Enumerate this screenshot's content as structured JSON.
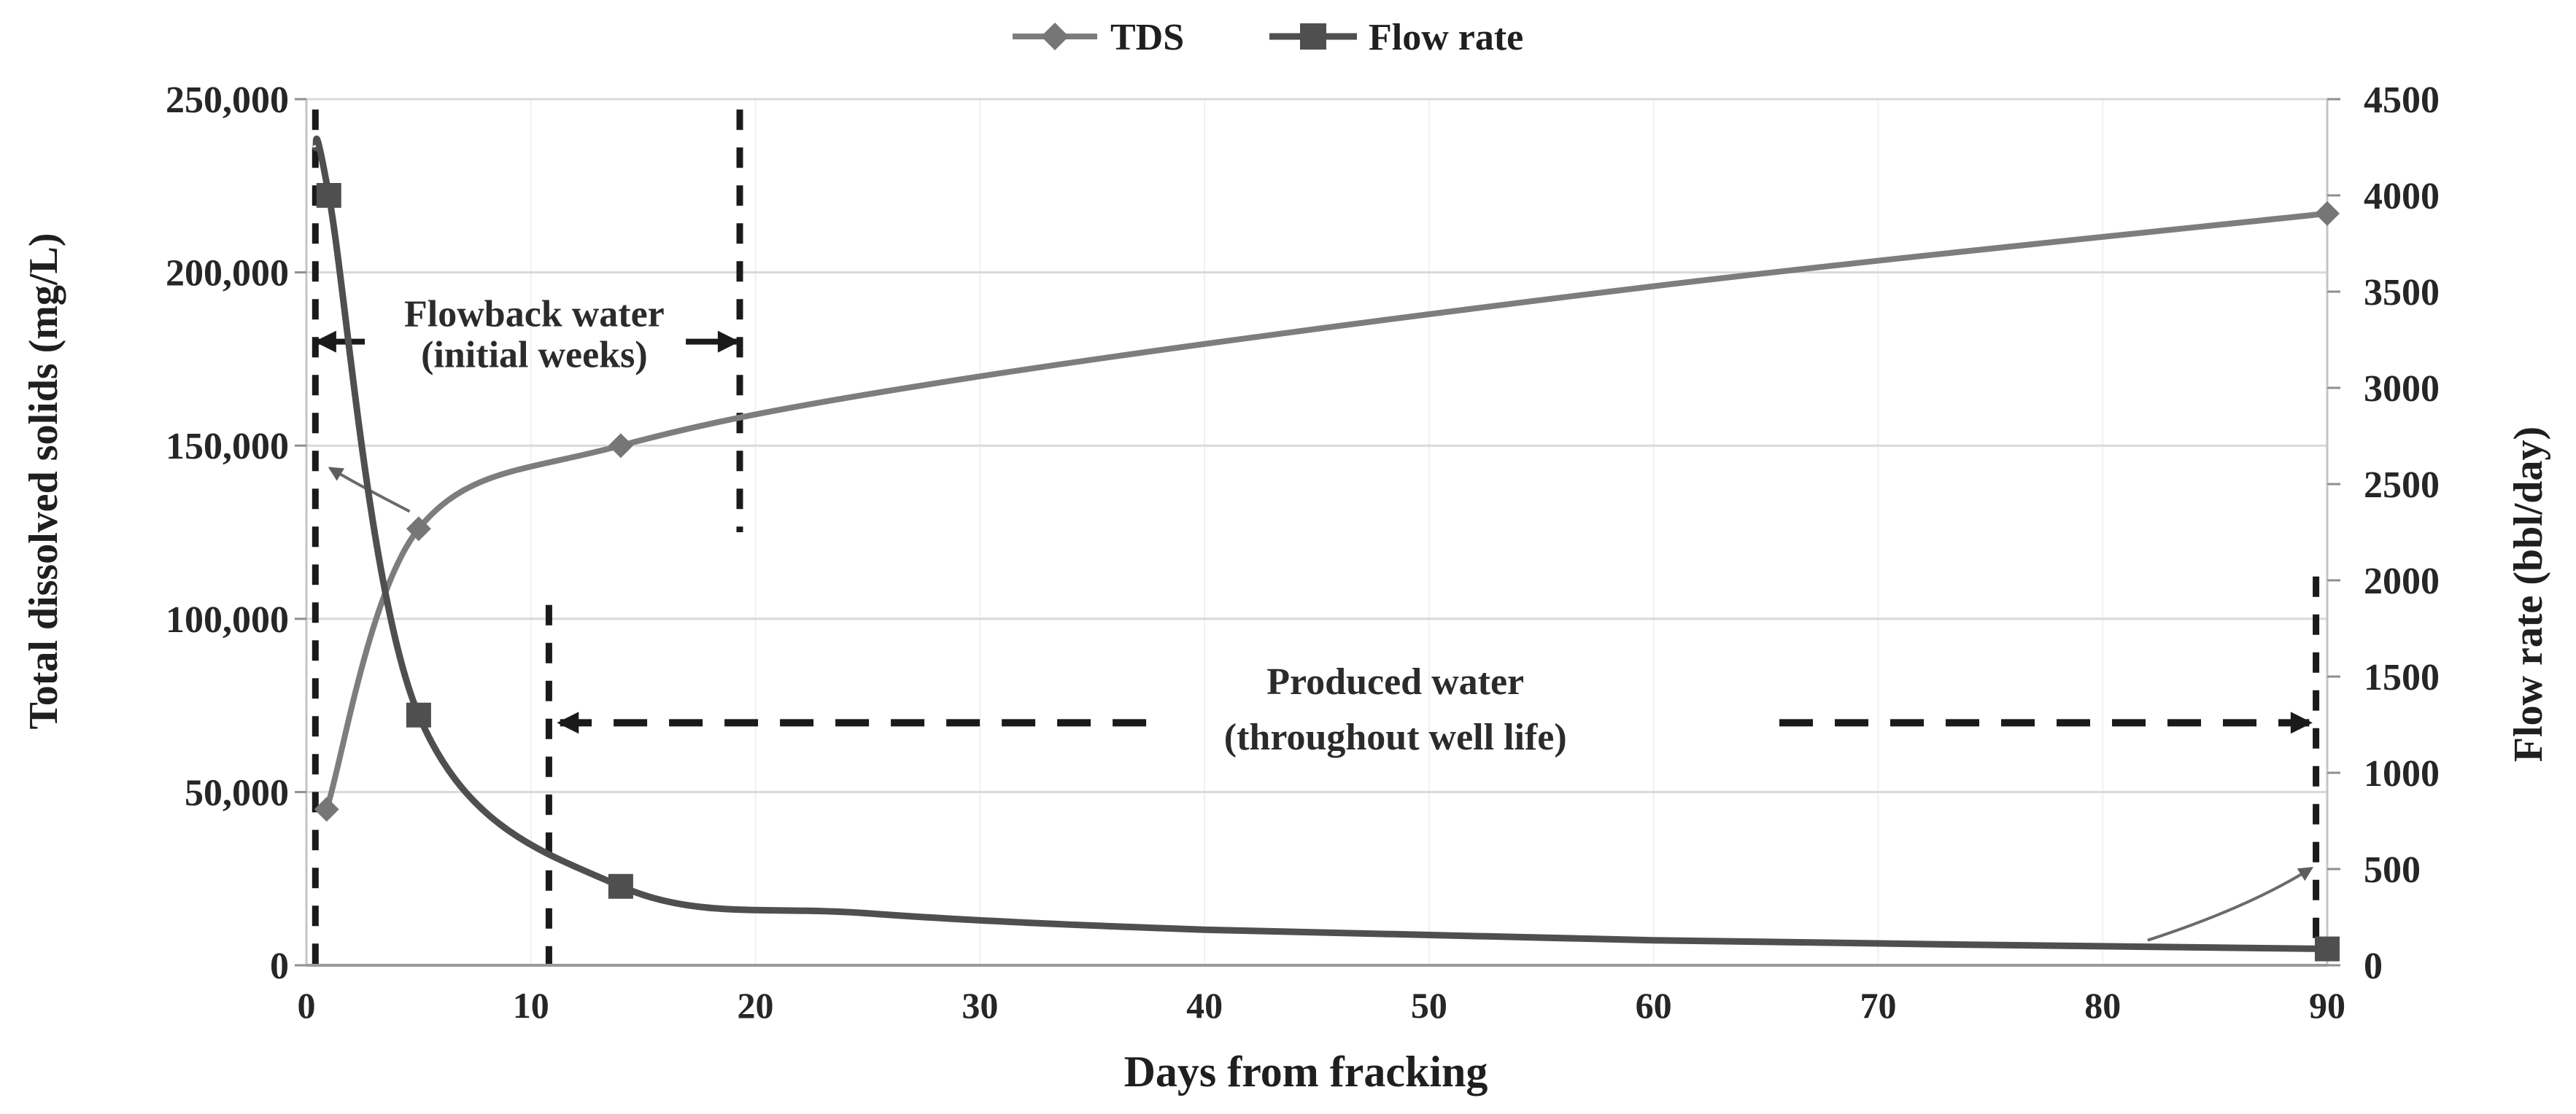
{
  "chart_data": {
    "type": "line",
    "title": "",
    "xlabel": "Days from fracking",
    "ylabel_left": "Total dissolved solids (mg/L)",
    "ylabel_right": "Flow rate (bbl/day)",
    "x_range": [
      0,
      90
    ],
    "x_ticks": [
      {
        "v": 0,
        "t": "0"
      },
      {
        "v": 10,
        "t": "10"
      },
      {
        "v": 20,
        "t": "20"
      },
      {
        "v": 30,
        "t": "30"
      },
      {
        "v": 40,
        "t": "40"
      },
      {
        "v": 50,
        "t": "50"
      },
      {
        "v": 60,
        "t": "60"
      },
      {
        "v": 70,
        "t": "70"
      },
      {
        "v": 80,
        "t": "80"
      },
      {
        "v": 90,
        "t": "90"
      }
    ],
    "y_left_range": [
      0,
      250000
    ],
    "y_left_ticks": [
      {
        "v": 0,
        "t": "0"
      },
      {
        "v": 50000,
        "t": "50,000"
      },
      {
        "v": 100000,
        "t": "100,000"
      },
      {
        "v": 150000,
        "t": "150,000"
      },
      {
        "v": 200000,
        "t": "200,000"
      },
      {
        "v": 250000,
        "t": "250,000"
      }
    ],
    "y_right_range": [
      0,
      4500
    ],
    "y_right_ticks": [
      {
        "v": 0,
        "t": "0"
      },
      {
        "v": 500,
        "t": "500"
      },
      {
        "v": 1000,
        "t": "1000"
      },
      {
        "v": 1500,
        "t": "1500"
      },
      {
        "v": 2000,
        "t": "2000"
      },
      {
        "v": 2500,
        "t": "2500"
      },
      {
        "v": 3000,
        "t": "3000"
      },
      {
        "v": 3500,
        "t": "3500"
      },
      {
        "v": 4000,
        "t": "4000"
      },
      {
        "v": 4500,
        "t": "4500"
      }
    ],
    "grid": {
      "horizontal_step": 50000,
      "horizontal_color": "#d9d9d9",
      "vertical_faint_color": "#f0f0f0"
    },
    "legend": {
      "position": "top-center",
      "items": [
        {
          "label": "TDS",
          "marker": "diamond",
          "color": "#7d7d7d"
        },
        {
          "label": "Flow rate",
          "marker": "square",
          "color": "#4f4f4f"
        }
      ]
    },
    "series": [
      {
        "name": "TDS",
        "axis": "left",
        "units": "mg/L",
        "color": "#7d7d7d",
        "marker": "diamond",
        "marker_color": "#767676",
        "points": [
          {
            "day": 0.9,
            "value": 45000,
            "marker": true
          },
          {
            "day": 5,
            "value": 126000,
            "marker": true
          },
          {
            "day": 14,
            "value": 150000,
            "marker": true
          },
          {
            "day": 30,
            "value": 170000,
            "marker": false
          },
          {
            "day": 60,
            "value": 196000,
            "marker": false
          },
          {
            "day": 90,
            "value": 217000,
            "marker": true
          }
        ]
      },
      {
        "name": "Flow rate",
        "axis": "right",
        "units": "bbl/day",
        "color": "#4f4f4f",
        "marker": "square",
        "marker_color": "#4f4f4f",
        "points": [
          {
            "day": 0.4,
            "value": 4250,
            "marker": false
          },
          {
            "day": 1,
            "value": 4000,
            "marker": true
          },
          {
            "day": 5,
            "value": 1300,
            "marker": true
          },
          {
            "day": 14,
            "value": 410,
            "marker": true
          },
          {
            "day": 25,
            "value": 270,
            "marker": false
          },
          {
            "day": 40,
            "value": 185,
            "marker": false
          },
          {
            "day": 60,
            "value": 130,
            "marker": false
          },
          {
            "day": 90,
            "value": 85,
            "marker": true
          }
        ]
      }
    ],
    "annotations": {
      "flowback_region": {
        "line1": "Flowback water",
        "line2": "(initial weeks)",
        "text_center_day": 10.15,
        "text_line1_tds": 184500,
        "text_line2_tds": 172700,
        "arrow_tds": 180000,
        "arrow_stub_left_days": [
          2.6,
          0.5
        ],
        "arrow_stub_right_days": [
          16.9,
          19.15
        ],
        "dashed_line_left": {
          "day": 0.4,
          "tds_from": 247000,
          "tds_to": 0
        },
        "dashed_line_right": {
          "day": 19.3,
          "tds_from": 247000,
          "tds_to": 125000
        }
      },
      "produced_region": {
        "line1": "Produced water",
        "line2": "(throughout well life)",
        "text_center_day": 48.5,
        "text_line1_tds": 78300,
        "text_line2_tds": 62300,
        "arrow_tds": 70000,
        "arrow_left_days": [
          37.4,
          11.3
        ],
        "arrow_right_days": [
          65.6,
          89.2
        ],
        "dashed_line_left": {
          "day": 10.8,
          "tds_from": 104000,
          "tds_to": 0
        },
        "dashed_line_right": {
          "day": 89.5,
          "flow_from": 2020,
          "flow_to": 50
        }
      },
      "tds_axis_pointer": {
        "points_day_tds": [
          [
            4.6,
            131000
          ],
          [
            2.2,
            139000
          ],
          [
            1.05,
            143500
          ]
        ]
      },
      "flow_axis_pointer": {
        "points_day_flow": [
          [
            82,
            130
          ],
          [
            86.5,
            300
          ],
          [
            89.3,
            505
          ]
        ]
      }
    }
  }
}
